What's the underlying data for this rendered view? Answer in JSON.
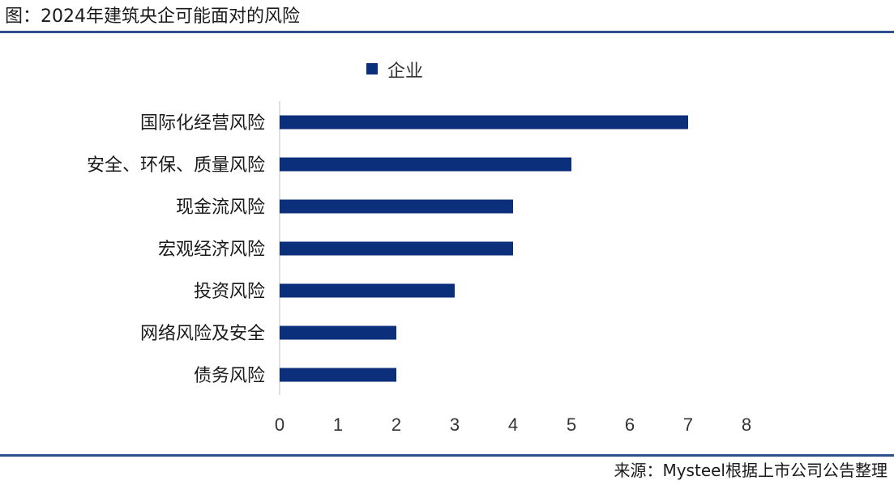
{
  "figure_title": "图：2024年建筑央企可能面对的风险",
  "source_note": "来源：Mysteel根据上市公司公告整理",
  "colors": {
    "bar": "#0b2f7a",
    "rule": "#2f4f8f",
    "axis": "#bfbfbf"
  },
  "chart_data": {
    "type": "bar",
    "orientation": "horizontal",
    "categories": [
      "国际化经营风险",
      "安全、环保、质量风险",
      "现金流风险",
      "宏观经济风险",
      "投资风险",
      "网络风险及安全",
      "债务风险"
    ],
    "series": [
      {
        "name": "企业",
        "values": [
          7,
          5,
          4,
          4,
          3,
          2,
          2
        ]
      }
    ],
    "xlim": [
      0,
      8
    ],
    "xticks": [
      0,
      1,
      2,
      3,
      4,
      5,
      6,
      7,
      8
    ],
    "grid": false,
    "legend": "top-center"
  }
}
